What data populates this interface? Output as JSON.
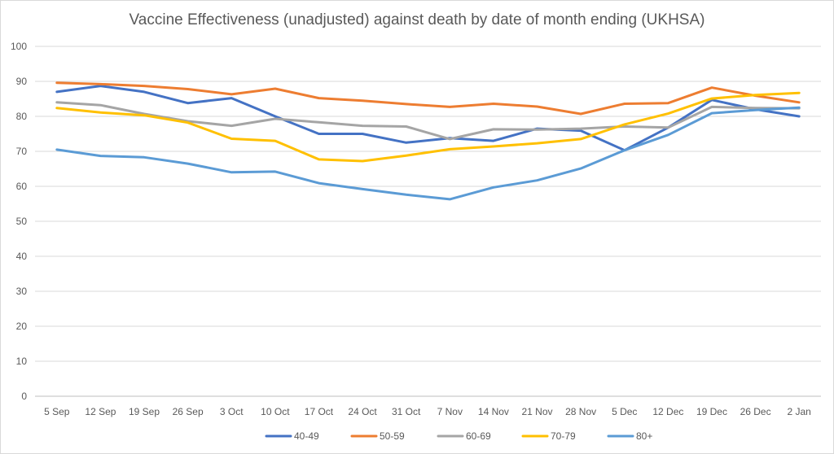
{
  "chart_data": {
    "type": "line",
    "title": "Vaccine  Effectiveness (unadjusted) against death by date of month ending (UKHSA)",
    "xlabel": "",
    "ylabel": "",
    "ylim": [
      0,
      100
    ],
    "yticks": [
      0,
      10,
      20,
      30,
      40,
      50,
      60,
      70,
      80,
      90,
      100
    ],
    "grid": true,
    "legend": "bottom",
    "categories": [
      "5 Sep",
      "12 Sep",
      "19 Sep",
      "26 Sep",
      "3 Oct",
      "10 Oct",
      "17 Oct",
      "24 Oct",
      "31 Oct",
      "7 Nov",
      "14 Nov",
      "21 Nov",
      "28 Nov",
      "5 Dec",
      "12 Dec",
      "19 Dec",
      "26 Dec",
      "2 Jan"
    ],
    "series": [
      {
        "name": "40-49",
        "color": "#4472c4",
        "values": [
          87,
          88.7,
          87,
          83.8,
          85.2,
          80,
          75,
          75,
          72.5,
          73.8,
          73,
          76.5,
          75.9,
          70.3,
          76.8,
          84.7,
          82,
          80
        ]
      },
      {
        "name": "50-59",
        "color": "#ed7d31",
        "values": [
          89.6,
          89.2,
          88.7,
          87.8,
          86.3,
          87.9,
          85.2,
          84.5,
          83.5,
          82.7,
          83.6,
          82.8,
          80.7,
          83.6,
          83.8,
          88.2,
          85.9,
          84
        ]
      },
      {
        "name": "60-69",
        "color": "#a5a5a5",
        "values": [
          84,
          83.2,
          80.7,
          78.6,
          77.3,
          79.3,
          78.3,
          77.3,
          77.1,
          73.5,
          76.3,
          76.2,
          76.5,
          77.1,
          76.8,
          82.7,
          82.4,
          82.3
        ]
      },
      {
        "name": "70-79",
        "color": "#ffc000",
        "values": [
          82.4,
          81.1,
          80.3,
          78.2,
          73.6,
          73,
          67.7,
          67.2,
          68.8,
          70.6,
          71.4,
          72.3,
          73.5,
          77.7,
          80.8,
          85.1,
          86.1,
          86.7
        ]
      },
      {
        "name": "80+",
        "color": "#5b9bd5",
        "values": [
          70.5,
          68.7,
          68.3,
          66.5,
          64,
          64.2,
          60.9,
          59.2,
          57.6,
          56.3,
          59.7,
          61.7,
          65.1,
          70.3,
          74.7,
          80.9,
          81.8,
          82.5
        ]
      }
    ]
  }
}
